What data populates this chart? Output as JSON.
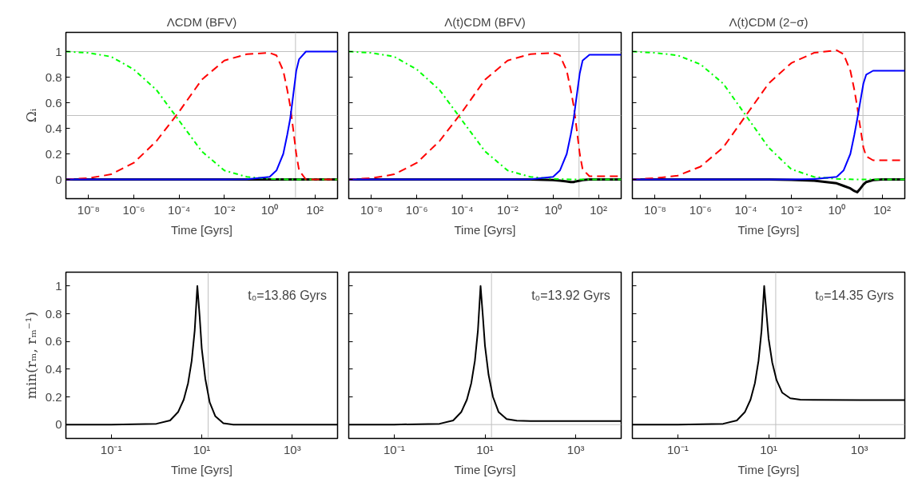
{
  "chart_data": [
    {
      "type": "line",
      "title": "ΛCDM (BFV)",
      "xlabel": "Time [Gyrs]",
      "ylabel": "Ωᵢ",
      "log": "x",
      "grid": false,
      "x": [
        1e-09,
        1e-08,
        1e-07,
        1e-06,
        1e-05,
        0.0001,
        0.001,
        0.01,
        0.1,
        1,
        2,
        4,
        6,
        8,
        10,
        15,
        20,
        40,
        100,
        1000
      ],
      "xlim": [
        1e-09,
        1000
      ],
      "ylim": [
        -0.15,
        1.15
      ],
      "xticks": [
        {
          "value": 1e-08,
          "label": "10⁻⁸"
        },
        {
          "value": 1e-06,
          "label": "10⁻⁶"
        },
        {
          "value": 0.0001,
          "label": "10⁻⁴"
        },
        {
          "value": 0.01,
          "label": "10⁻²"
        },
        {
          "value": 1,
          "label": "10⁰"
        },
        {
          "value": 100,
          "label": "10²"
        }
      ],
      "yticks": [
        0,
        0.2,
        0.4,
        0.6,
        0.8,
        1
      ],
      "ref_lines": [
        {
          "axis": "y",
          "value": 0.5,
          "color": "#c0c0c0"
        },
        {
          "axis": "y",
          "value": 1,
          "color": "#c0c0c0"
        },
        {
          "axis": "x",
          "value": 13.86,
          "color": "#c0c0c0"
        }
      ],
      "series": [
        {
          "color": "#000000",
          "line_style": "solid",
          "values": [
            0,
            0,
            0,
            0,
            0,
            0,
            0,
            0,
            0,
            0,
            0,
            0,
            0,
            0,
            0,
            0,
            0,
            0,
            0,
            0
          ]
        },
        {
          "color": "#00ff00",
          "line_style": "dashdot",
          "values": [
            1.0,
            0.99,
            0.96,
            0.86,
            0.7,
            0.46,
            0.22,
            0.07,
            0.02,
            0.005,
            0.003,
            0.001,
            0,
            0,
            0,
            0,
            0,
            0,
            0,
            0
          ]
        },
        {
          "color": "#ff0000",
          "line_style": "dashed",
          "values": [
            0,
            0.01,
            0.04,
            0.13,
            0.3,
            0.53,
            0.78,
            0.93,
            0.98,
            0.99,
            0.97,
            0.85,
            0.7,
            0.58,
            0.45,
            0.2,
            0.07,
            0,
            0,
            0
          ]
        },
        {
          "color": "#0000ff",
          "line_style": "solid",
          "values": [
            0,
            0,
            0,
            0,
            0,
            0,
            0,
            0,
            0.002,
            0.02,
            0.07,
            0.2,
            0.35,
            0.47,
            0.6,
            0.85,
            0.94,
            1.0,
            1.0,
            1.0
          ]
        }
      ]
    },
    {
      "type": "line",
      "title": "Λ(t)CDM (BFV)",
      "xlabel": "Time [Gyrs]",
      "log": "x",
      "grid": false,
      "tick_labels": "x",
      "x": [
        1e-09,
        1e-08,
        1e-07,
        1e-06,
        1e-05,
        0.0001,
        0.001,
        0.01,
        0.1,
        1,
        2,
        4,
        6,
        8,
        10,
        15,
        20,
        40,
        100,
        1000
      ],
      "xlim": [
        1e-09,
        1000
      ],
      "ylim": [
        -0.15,
        1.15
      ],
      "xticks": [
        {
          "value": 1e-08,
          "label": "10⁻⁸"
        },
        {
          "value": 1e-06,
          "label": "10⁻⁶"
        },
        {
          "value": 0.0001,
          "label": "10⁻⁴"
        },
        {
          "value": 0.01,
          "label": "10⁻²"
        },
        {
          "value": 1,
          "label": "10⁰"
        },
        {
          "value": 100,
          "label": "10²"
        }
      ],
      "yticks": [
        0,
        0.2,
        0.4,
        0.6,
        0.8,
        1
      ],
      "ref_lines": [
        {
          "axis": "y",
          "value": 0.5,
          "color": "#c0c0c0"
        },
        {
          "axis": "y",
          "value": 1,
          "color": "#c0c0c0"
        },
        {
          "axis": "x",
          "value": 13.92,
          "color": "#c0c0c0"
        }
      ],
      "series": [
        {
          "color": "#000000",
          "line_style": "solid",
          "values": [
            0,
            0,
            0,
            0,
            0,
            0,
            0,
            0,
            0,
            -0.005,
            -0.01,
            -0.015,
            -0.02,
            -0.02,
            -0.015,
            -0.01,
            -0.005,
            0,
            0,
            0
          ]
        },
        {
          "color": "#00ff00",
          "line_style": "dashdot",
          "values": [
            1.0,
            0.99,
            0.96,
            0.86,
            0.7,
            0.46,
            0.22,
            0.07,
            0.02,
            0.005,
            0.003,
            0.001,
            0,
            0,
            0,
            0,
            0,
            0,
            0,
            0
          ]
        },
        {
          "color": "#ff0000",
          "line_style": "dashed",
          "values": [
            0,
            0.01,
            0.04,
            0.13,
            0.3,
            0.53,
            0.78,
            0.93,
            0.98,
            0.99,
            0.97,
            0.85,
            0.7,
            0.58,
            0.45,
            0.2,
            0.08,
            0.025,
            0.025,
            0.025
          ]
        },
        {
          "color": "#0000ff",
          "line_style": "solid",
          "values": [
            0,
            0,
            0,
            0,
            0,
            0,
            0,
            0,
            0.002,
            0.02,
            0.07,
            0.2,
            0.35,
            0.47,
            0.6,
            0.83,
            0.93,
            0.975,
            0.975,
            0.975
          ]
        }
      ]
    },
    {
      "type": "line",
      "title": "Λ(t)CDM (2−σ)",
      "xlabel": "Time [Gyrs]",
      "log": "x",
      "grid": false,
      "tick_labels": "x",
      "x": [
        1e-09,
        1e-08,
        1e-07,
        1e-06,
        1e-05,
        0.0001,
        0.001,
        0.01,
        0.1,
        1,
        2,
        4,
        6,
        8,
        10,
        15,
        20,
        40,
        100,
        1000
      ],
      "xlim": [
        1e-09,
        1000
      ],
      "ylim": [
        -0.15,
        1.15
      ],
      "xticks": [
        {
          "value": 1e-08,
          "label": "10⁻⁸"
        },
        {
          "value": 1e-06,
          "label": "10⁻⁶"
        },
        {
          "value": 0.0001,
          "label": "10⁻⁴"
        },
        {
          "value": 0.01,
          "label": "10⁻²"
        },
        {
          "value": 1,
          "label": "10⁰"
        },
        {
          "value": 100,
          "label": "10²"
        }
      ],
      "yticks": [
        0,
        0.2,
        0.4,
        0.6,
        0.8,
        1
      ],
      "ref_lines": [
        {
          "axis": "y",
          "value": 0.5,
          "color": "#c0c0c0"
        },
        {
          "axis": "y",
          "value": 1,
          "color": "#c0c0c0"
        },
        {
          "axis": "x",
          "value": 14.35,
          "color": "#c0c0c0"
        }
      ],
      "series": [
        {
          "color": "#000000",
          "line_style": "solid",
          "values": [
            0,
            0,
            0,
            0,
            0,
            0,
            0,
            -0.003,
            -0.01,
            -0.03,
            -0.05,
            -0.07,
            -0.09,
            -0.1,
            -0.08,
            -0.04,
            -0.02,
            -0.005,
            0,
            0
          ]
        },
        {
          "color": "#00ff00",
          "line_style": "dashdot",
          "values": [
            1.0,
            0.99,
            0.97,
            0.9,
            0.75,
            0.5,
            0.25,
            0.08,
            0.02,
            0.005,
            0.003,
            0.001,
            0,
            0,
            0,
            0,
            0,
            0,
            0,
            0
          ]
        },
        {
          "color": "#ff0000",
          "line_style": "dashed",
          "values": [
            0,
            0.01,
            0.03,
            0.1,
            0.25,
            0.5,
            0.75,
            0.91,
            0.99,
            1.01,
            0.98,
            0.85,
            0.7,
            0.57,
            0.45,
            0.25,
            0.18,
            0.15,
            0.15,
            0.15
          ]
        },
        {
          "color": "#0000ff",
          "line_style": "solid",
          "values": [
            0,
            0,
            0,
            0,
            0,
            0,
            0,
            0,
            0.003,
            0.02,
            0.07,
            0.2,
            0.35,
            0.47,
            0.57,
            0.75,
            0.82,
            0.85,
            0.85,
            0.85
          ]
        }
      ]
    },
    {
      "type": "line",
      "xlabel": "Time [Gyrs]",
      "ylabel": "min(rₘ, rₘ⁻¹)",
      "log": "x",
      "grid": false,
      "annotations": [
        "t₀=13.86 Gyrs"
      ],
      "x": [
        0.01,
        0.1,
        1,
        2,
        3,
        4,
        5,
        6,
        7,
        8,
        9,
        10,
        12,
        15,
        20,
        30,
        50,
        100,
        1000,
        10000
      ],
      "xlim": [
        0.01,
        10000
      ],
      "ylim": [
        -0.1,
        1.1
      ],
      "xticks": [
        {
          "value": 0.1,
          "label": "10⁻¹"
        },
        {
          "value": 10,
          "label": "10¹"
        },
        {
          "value": 1000,
          "label": "10³"
        }
      ],
      "yticks": [
        0,
        0.2,
        0.4,
        0.6,
        0.8,
        1
      ],
      "ref_lines": [
        {
          "axis": "x",
          "value": 13.86,
          "color": "#c0c0c0"
        }
      ],
      "series": [
        {
          "color": "#000000",
          "line_style": "solid",
          "values": [
            0,
            0,
            0.006,
            0.03,
            0.09,
            0.18,
            0.3,
            0.46,
            0.68,
            1.0,
            0.78,
            0.55,
            0.33,
            0.16,
            0.06,
            0.01,
            0,
            0,
            0,
            0
          ]
        }
      ]
    },
    {
      "type": "line",
      "xlabel": "Time [Gyrs]",
      "log": "x",
      "grid": false,
      "tick_labels": "x",
      "annotations": [
        "t₀=13.92 Gyrs"
      ],
      "x": [
        0.01,
        0.1,
        1,
        2,
        3,
        4,
        5,
        6,
        7,
        8,
        9,
        10,
        12,
        15,
        20,
        30,
        50,
        100,
        1000,
        10000
      ],
      "xlim": [
        0.01,
        10000
      ],
      "ylim": [
        -0.1,
        1.1
      ],
      "xticks": [
        {
          "value": 0.1,
          "label": "10⁻¹"
        },
        {
          "value": 10,
          "label": "10¹"
        },
        {
          "value": 1000,
          "label": "10³"
        }
      ],
      "yticks": [
        0,
        0.2,
        0.4,
        0.6,
        0.8,
        1
      ],
      "ref_lines": [
        {
          "axis": "y",
          "value": 0,
          "color": "#c0c0c0"
        },
        {
          "axis": "x",
          "value": 13.92,
          "color": "#c0c0c0"
        }
      ],
      "series": [
        {
          "color": "#000000",
          "line_style": "solid",
          "values": [
            0,
            0,
            0.006,
            0.03,
            0.09,
            0.18,
            0.3,
            0.46,
            0.68,
            1.0,
            0.78,
            0.57,
            0.36,
            0.2,
            0.09,
            0.04,
            0.028,
            0.026,
            0.025,
            0.025
          ]
        }
      ]
    },
    {
      "type": "line",
      "xlabel": "Time [Gyrs]",
      "log": "x",
      "grid": false,
      "tick_labels": "x",
      "annotations": [
        "t₀=14.35 Gyrs"
      ],
      "x": [
        0.01,
        0.1,
        1,
        2,
        3,
        4,
        5,
        6,
        7,
        8,
        9,
        10,
        12,
        15,
        20,
        30,
        50,
        100,
        1000,
        10000
      ],
      "xlim": [
        0.01,
        10000
      ],
      "ylim": [
        -0.1,
        1.1
      ],
      "xticks": [
        {
          "value": 0.1,
          "label": "10⁻¹"
        },
        {
          "value": 10,
          "label": "10¹"
        },
        {
          "value": 1000,
          "label": "10³"
        }
      ],
      "yticks": [
        0,
        0.2,
        0.4,
        0.6,
        0.8,
        1
      ],
      "ref_lines": [
        {
          "axis": "y",
          "value": 0,
          "color": "#c0c0c0"
        },
        {
          "axis": "x",
          "value": 14.35,
          "color": "#c0c0c0"
        }
      ],
      "series": [
        {
          "color": "#000000",
          "line_style": "solid",
          "values": [
            0,
            0,
            0.006,
            0.03,
            0.09,
            0.18,
            0.3,
            0.46,
            0.68,
            1.0,
            0.8,
            0.62,
            0.45,
            0.32,
            0.23,
            0.19,
            0.18,
            0.178,
            0.177,
            0.177
          ]
        }
      ]
    }
  ]
}
